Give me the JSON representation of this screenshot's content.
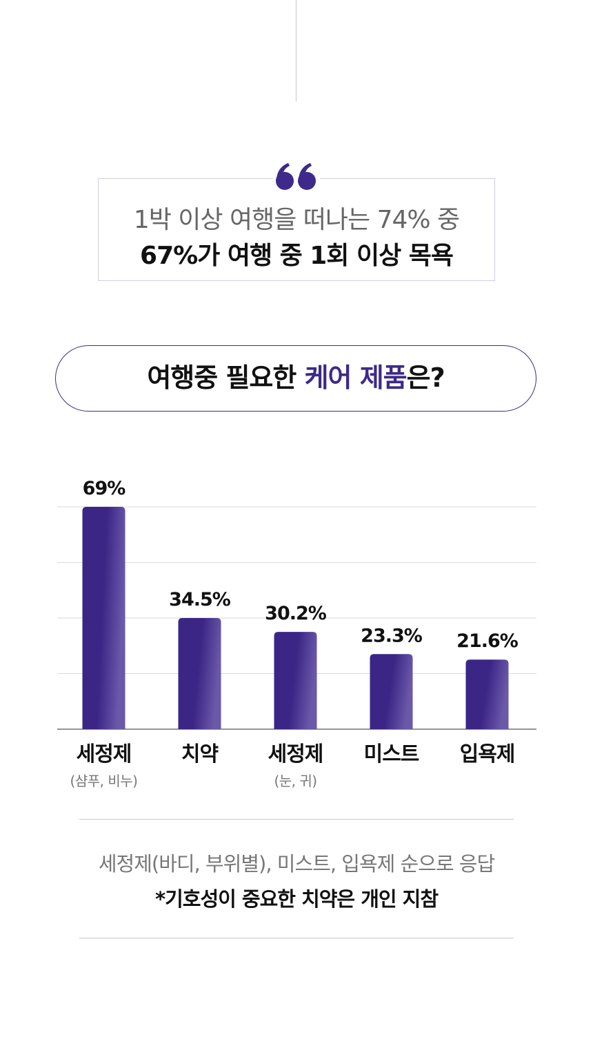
{
  "quote": {
    "line1": "1박 이상 여행을 떠나는 74% 중",
    "line2": "67%가 여행 중 1회 이상 목욕"
  },
  "question": {
    "part1": "여행중 필요한 ",
    "highlight": "케어 제품",
    "part2": "은?"
  },
  "colors": {
    "accent": "#3d2a8a",
    "bar": "#3b2686",
    "grid": "#d9d9d9"
  },
  "chart_data": {
    "type": "bar",
    "categories": [
      "세정제",
      "치약",
      "세정제",
      "미스트",
      "입욕제"
    ],
    "sublabels": [
      "(샴푸, 비누)",
      "",
      "(눈, 귀)",
      "",
      ""
    ],
    "values": [
      69,
      34.5,
      30.2,
      23.3,
      21.6
    ],
    "value_labels": [
      "69%",
      "34.5%",
      "30.2%",
      "23.3%",
      "21.6%"
    ],
    "ylim": [
      0,
      69
    ],
    "grid": true
  },
  "notes": {
    "line1": "세정제(바디, 부위별), 미스트, 입욕제 순으로 응답",
    "line2": "*기호성이 중요한 치약은 개인 지참"
  }
}
